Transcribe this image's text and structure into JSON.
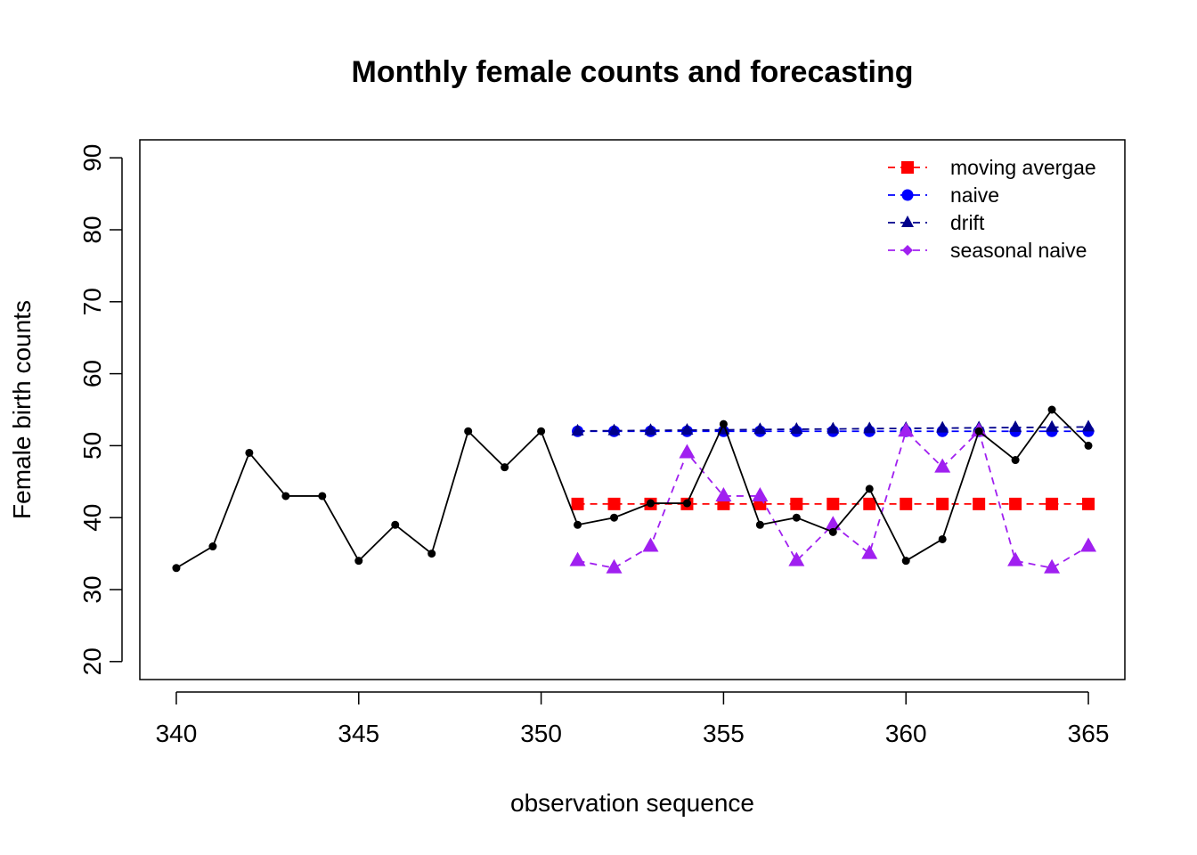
{
  "chart_data": {
    "type": "line",
    "title": "Monthly female counts and forecasting",
    "xlabel": "observation sequence",
    "ylabel": "Female birth counts",
    "xlim": [
      339,
      366
    ],
    "ylim": [
      17.5,
      92.5
    ],
    "xticks": [
      340,
      345,
      350,
      355,
      360,
      365
    ],
    "yticks": [
      20,
      30,
      40,
      50,
      60,
      70,
      80,
      90
    ],
    "grid": false,
    "legend_position": "top-right",
    "series": [
      {
        "key": "observed",
        "color": "#000000",
        "marker": "circle-small",
        "line": "solid",
        "x": [
          340,
          341,
          342,
          343,
          344,
          345,
          346,
          347,
          348,
          349,
          350,
          351,
          352,
          353,
          354,
          355,
          356,
          357,
          358,
          359,
          360,
          361,
          362,
          363,
          364,
          365
        ],
        "y": [
          33,
          36,
          49,
          43,
          43,
          34,
          39,
          35,
          52,
          47,
          52,
          39,
          40,
          42,
          42,
          53,
          39,
          40,
          38,
          44,
          34,
          37,
          52,
          48,
          55,
          50
        ]
      },
      {
        "key": "moving_average",
        "name": "moving avergae",
        "color": "#ff0000",
        "marker": "square",
        "line": "dashed",
        "x": [
          351,
          352,
          353,
          354,
          355,
          356,
          357,
          358,
          359,
          360,
          361,
          362,
          363,
          364,
          365
        ],
        "y": [
          41.9,
          41.9,
          41.9,
          41.9,
          41.9,
          41.9,
          41.9,
          41.9,
          41.9,
          41.9,
          41.9,
          41.9,
          41.9,
          41.9,
          41.9
        ]
      },
      {
        "key": "naive",
        "name": "naive",
        "color": "#0000ff",
        "marker": "circle",
        "line": "dashed",
        "x": [
          351,
          352,
          353,
          354,
          355,
          356,
          357,
          358,
          359,
          360,
          361,
          362,
          363,
          364,
          365
        ],
        "y": [
          52,
          52,
          52,
          52,
          52,
          52,
          52,
          52,
          52,
          52,
          52,
          52,
          52,
          52,
          52
        ]
      },
      {
        "key": "drift",
        "name": "drift",
        "color": "#00008b",
        "marker": "triangle",
        "line": "dashed",
        "x": [
          351,
          352,
          353,
          354,
          355,
          356,
          357,
          358,
          359,
          360,
          361,
          362,
          363,
          364,
          365
        ],
        "y": [
          52.04,
          52.08,
          52.12,
          52.16,
          52.2,
          52.24,
          52.28,
          52.32,
          52.36,
          52.4,
          52.44,
          52.48,
          52.52,
          52.56,
          52.6
        ]
      },
      {
        "key": "seasonal_naive",
        "name": "seasonal naive",
        "color": "#a020f0",
        "marker": "triangle-large",
        "legend_marker": "diamond",
        "line": "dashed",
        "x": [
          351,
          352,
          353,
          354,
          355,
          356,
          357,
          358,
          359,
          360,
          361,
          362,
          363,
          364,
          365
        ],
        "y": [
          34,
          33,
          36,
          49,
          43,
          43,
          34,
          39,
          35,
          52,
          47,
          52,
          34,
          33,
          36
        ]
      }
    ]
  }
}
